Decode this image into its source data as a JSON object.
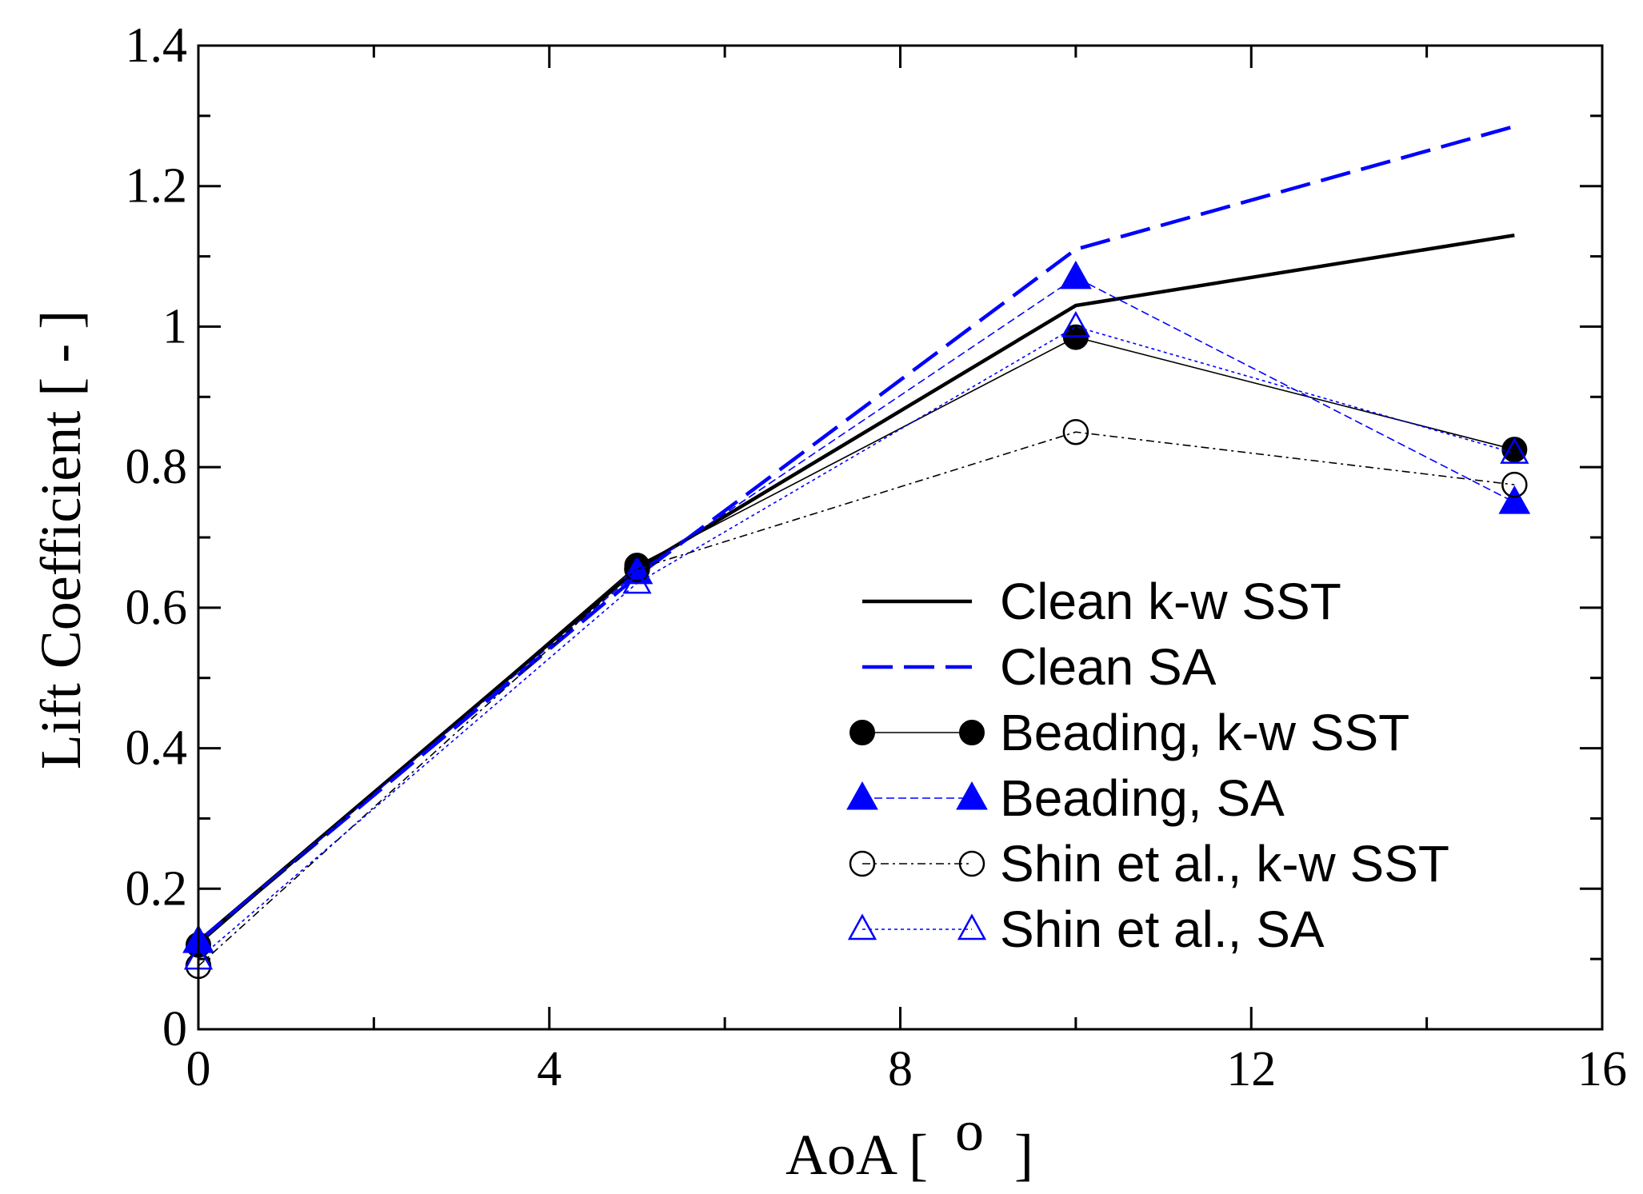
{
  "chart_data": {
    "type": "line",
    "title": "",
    "xlabel": "AoA [",
    "xlabel_sup": "o",
    "xlabel_end": "]",
    "ylabel": "Lift Coefficient [ - ]",
    "xlim": [
      0,
      16
    ],
    "ylim": [
      0,
      1.4
    ],
    "xticks": [
      0,
      4,
      8,
      12,
      16
    ],
    "xtick_labels": [
      "0",
      "4",
      "8",
      "12",
      "16"
    ],
    "yticks": [
      0,
      0.2,
      0.4,
      0.6,
      0.8,
      1.0,
      1.2,
      1.4
    ],
    "ytick_labels": [
      "0",
      "0.2",
      "0.4",
      "0.6",
      "0.8",
      "1",
      "1.2",
      "1.4"
    ],
    "grid": false,
    "legend_position": "bottom-right",
    "series": [
      {
        "name": "Clean k-w SST",
        "x": [
          0,
          5,
          10,
          15
        ],
        "y": [
          0.125,
          0.655,
          1.03,
          1.13
        ],
        "color": "#000000",
        "line": "solid",
        "marker": "none"
      },
      {
        "name": "Clean SA",
        "x": [
          0,
          5,
          10,
          15
        ],
        "y": [
          0.125,
          0.645,
          1.11,
          1.285
        ],
        "color": "#0000ff",
        "line": "dashed",
        "marker": "none"
      },
      {
        "name": "Beading, k-w SST",
        "x": [
          0,
          5,
          10,
          15
        ],
        "y": [
          0.12,
          0.66,
          0.985,
          0.825
        ],
        "color": "#000000",
        "line": "thin-solid",
        "marker": "filled-circle"
      },
      {
        "name": "Beading, SA",
        "x": [
          0,
          5,
          10,
          15
        ],
        "y": [
          0.125,
          0.65,
          1.07,
          0.75
        ],
        "color": "#0000ff",
        "line": "thin-dashed",
        "marker": "filled-triangle"
      },
      {
        "name": "Shin et al., k-w SST",
        "x": [
          0,
          5,
          10,
          15
        ],
        "y": [
          0.09,
          0.655,
          0.85,
          0.775
        ],
        "color": "#000000",
        "line": "dash-dot",
        "marker": "open-circle"
      },
      {
        "name": "Shin et al., SA",
        "x": [
          0,
          5,
          10,
          15
        ],
        "y": [
          0.1,
          0.635,
          1.0,
          0.82
        ],
        "color": "#0000ff",
        "line": "dotted",
        "marker": "open-triangle"
      }
    ]
  }
}
